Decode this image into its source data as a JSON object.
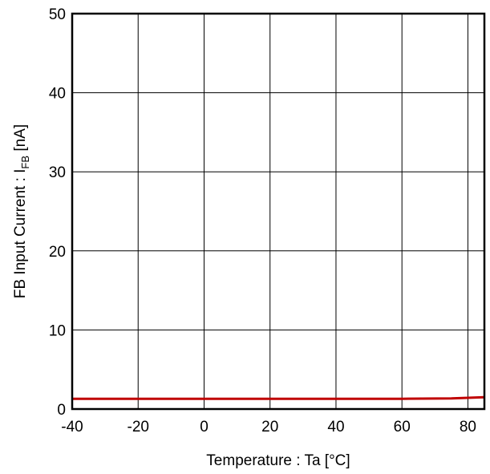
{
  "chart_data": {
    "type": "line",
    "title": "",
    "xlabel": "Temperature : Ta [°C]",
    "ylabel_main": "FB Input Current : I",
    "ylabel_sub": "FB",
    "ylabel_tail": " [nA]",
    "xlim": [
      -40,
      85
    ],
    "ylim": [
      0,
      50
    ],
    "x_ticks": [
      -40,
      -20,
      0,
      20,
      40,
      60,
      80
    ],
    "y_ticks": [
      0,
      10,
      20,
      30,
      40,
      50
    ],
    "grid": true,
    "legend": "none",
    "series": [
      {
        "color": "#c00000",
        "x": [
          -40,
          -20,
          0,
          20,
          40,
          60,
          75,
          85
        ],
        "y": [
          1.3,
          1.3,
          1.3,
          1.3,
          1.3,
          1.3,
          1.35,
          1.5
        ]
      }
    ]
  }
}
